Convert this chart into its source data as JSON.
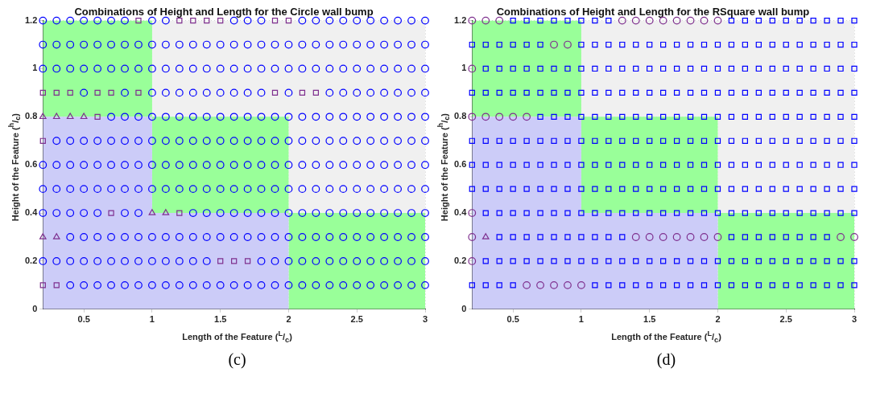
{
  "chart_data": [
    {
      "type": "scatter",
      "title": "Combinations of Height and Length for the Circle wall bump",
      "xlabel": "Length of the Feature ($^{L}$/$_{c}$)",
      "ylabel": "Height of the Feature ($^{h}$/$_{c}$)",
      "xlim": [
        0.2,
        3
      ],
      "ylim": [
        0,
        1.2
      ],
      "xticks": [
        0.5,
        1,
        1.5,
        2,
        2.5,
        3
      ],
      "yticks": [
        0,
        0.2,
        0.4,
        0.6,
        0.8,
        1,
        1.2
      ],
      "grid": true,
      "stacked": true,
      "annotations": [
        "(c)"
      ],
      "series": [
        {
          "type": "area",
          "color": "#ccccf8",
          "x": [
            0.2,
            1,
            1,
            2,
            2,
            3
          ],
          "values": [
            0.8,
            0.8,
            0.4,
            0.4,
            0,
            0
          ]
        },
        {
          "type": "area",
          "color": "#99ff99",
          "x": [
            0.2,
            1,
            1,
            2,
            2,
            3
          ],
          "values": [
            0.4,
            0.4,
            0.4,
            0.4,
            0.4,
            0.4
          ]
        },
        {
          "type": "area",
          "color": "#f0f0f0",
          "x": [
            0.2,
            1,
            1,
            2,
            2,
            3
          ],
          "values": [
            0,
            0,
            0.4,
            0.4,
            0.8,
            0.8
          ]
        },
        {
          "marker": "circle",
          "color": "#0000ff",
          "x": [
            0.2,
            0.3,
            0.4,
            0.5,
            0.6,
            0.7,
            0.8,
            1,
            1.1,
            1.6,
            1.7,
            1.8,
            2.1,
            2.2,
            2.3,
            2.4,
            2.5,
            2.6,
            2.7,
            2.8,
            2.9,
            3,
            0.2,
            0.3,
            0.4,
            0.5,
            0.6,
            0.7,
            0.8,
            0.9,
            1,
            1.1,
            1.2,
            1.3,
            1.4,
            1.5,
            1.6,
            1.7,
            1.8,
            1.9,
            2,
            2.1,
            2.2,
            2.3,
            2.4,
            2.5,
            2.6,
            2.7,
            2.8,
            2.9,
            3,
            0.2,
            0.3,
            0.4,
            0.5,
            0.6,
            0.7,
            0.8,
            0.9,
            1,
            1.1,
            1.2,
            1.3,
            1.4,
            1.5,
            1.6,
            1.7,
            1.8,
            1.9,
            2,
            2.1,
            2.2,
            2.3,
            2.4,
            2.5,
            2.6,
            2.7,
            2.8,
            2.9,
            3,
            0.5,
            0.8,
            1,
            1.1,
            1.2,
            1.3,
            1.4,
            1.5,
            1.6,
            1.7,
            1.8,
            2,
            2.3,
            2.4,
            2.5,
            2.6,
            2.7,
            2.8,
            2.9,
            3,
            0.7,
            0.8,
            0.9,
            1,
            1.1,
            1.2,
            1.3,
            1.4,
            1.5,
            1.6,
            1.7,
            1.8,
            1.9,
            2,
            2.1,
            2.2,
            2.3,
            2.4,
            2.5,
            2.6,
            2.7,
            2.8,
            2.9,
            3,
            0.3,
            0.4,
            0.5,
            0.6,
            0.7,
            0.8,
            0.9,
            1,
            1.1,
            1.2,
            1.3,
            1.4,
            1.5,
            1.6,
            1.7,
            1.8,
            1.9,
            2,
            2.1,
            2.2,
            2.3,
            2.4,
            2.5,
            2.6,
            2.7,
            2.8,
            2.9,
            3,
            0.2,
            0.3,
            0.4,
            0.5,
            0.6,
            0.7,
            0.8,
            0.9,
            1,
            1.1,
            1.2,
            1.3,
            1.4,
            1.5,
            1.6,
            1.7,
            1.8,
            1.9,
            2,
            2.1,
            2.2,
            2.3,
            2.4,
            2.5,
            2.6,
            2.7,
            2.8,
            2.9,
            3,
            0.2,
            0.3,
            0.4,
            0.5,
            0.6,
            0.7,
            0.8,
            0.9,
            1,
            1.1,
            1.2,
            1.3,
            1.4,
            1.5,
            1.6,
            1.7,
            1.8,
            1.9,
            2,
            2.1,
            2.2,
            2.3,
            2.4,
            2.5,
            2.6,
            2.7,
            2.8,
            2.9,
            3,
            0.2,
            0.3,
            0.4,
            0.5,
            0.6,
            0.8,
            0.9,
            1.3,
            1.4,
            1.5,
            1.6,
            1.7,
            1.8,
            1.9,
            2,
            2.1,
            2.2,
            2.3,
            2.4,
            2.5,
            2.6,
            2.7,
            2.8,
            2.9,
            3,
            0.4,
            0.5,
            0.6,
            0.7,
            0.8,
            0.9,
            1,
            1.1,
            1.2,
            1.3,
            1.4,
            1.5,
            1.6,
            1.7,
            1.8,
            1.9,
            2,
            2.1,
            2.2,
            2.3,
            2.4,
            2.5,
            2.6,
            2.7,
            2.8,
            2.9,
            3,
            0.2,
            0.3,
            0.4,
            0.5,
            0.6,
            0.7,
            0.8,
            0.9,
            1,
            1.1,
            1.2,
            1.3,
            1.4,
            1.8,
            1.9,
            2,
            2.1,
            2.2,
            2.3,
            2.4,
            2.5,
            2.6,
            2.7,
            2.8,
            2.9,
            3,
            0.4,
            0.5,
            0.6,
            0.7,
            0.8,
            0.9,
            1,
            1.1,
            1.2,
            1.3,
            1.4,
            1.5,
            1.6,
            1.7,
            1.8,
            1.9,
            2,
            2.1,
            2.2,
            2.3,
            2.4,
            2.5,
            2.6,
            2.7,
            2.8,
            2.9,
            3
          ],
          "values": [
            1.2,
            1.2,
            1.2,
            1.2,
            1.2,
            1.2,
            1.2,
            1.2,
            1.2,
            1.2,
            1.2,
            1.2,
            1.2,
            1.2,
            1.2,
            1.2,
            1.2,
            1.2,
            1.2,
            1.2,
            1.2,
            1.2,
            1.1,
            1.1,
            1.1,
            1.1,
            1.1,
            1.1,
            1.1,
            1.1,
            1.1,
            1.1,
            1.1,
            1.1,
            1.1,
            1.1,
            1.1,
            1.1,
            1.1,
            1.1,
            1.1,
            1.1,
            1.1,
            1.1,
            1.1,
            1.1,
            1.1,
            1.1,
            1.1,
            1.1,
            1.1,
            1,
            1,
            1,
            1,
            1,
            1,
            1,
            1,
            1,
            1,
            1,
            1,
            1,
            1,
            1,
            1,
            1,
            1,
            1,
            1,
            1,
            1,
            1,
            1,
            1,
            1,
            1,
            1,
            1,
            0.9,
            0.9,
            0.9,
            0.9,
            0.9,
            0.9,
            0.9,
            0.9,
            0.9,
            0.9,
            0.9,
            0.9,
            0.9,
            0.9,
            0.9,
            0.9,
            0.9,
            0.9,
            0.9,
            0.9,
            0.8,
            0.8,
            0.8,
            0.8,
            0.8,
            0.8,
            0.8,
            0.8,
            0.8,
            0.8,
            0.8,
            0.8,
            0.8,
            0.8,
            0.8,
            0.8,
            0.8,
            0.8,
            0.8,
            0.8,
            0.8,
            0.8,
            0.8,
            0.8,
            0.7,
            0.7,
            0.7,
            0.7,
            0.7,
            0.7,
            0.7,
            0.7,
            0.7,
            0.7,
            0.7,
            0.7,
            0.7,
            0.7,
            0.7,
            0.7,
            0.7,
            0.7,
            0.7,
            0.7,
            0.7,
            0.7,
            0.7,
            0.7,
            0.7,
            0.7,
            0.7,
            0.7,
            0.6,
            0.6,
            0.6,
            0.6,
            0.6,
            0.6,
            0.6,
            0.6,
            0.6,
            0.6,
            0.6,
            0.6,
            0.6,
            0.6,
            0.6,
            0.6,
            0.6,
            0.6,
            0.6,
            0.6,
            0.6,
            0.6,
            0.6,
            0.6,
            0.6,
            0.6,
            0.6,
            0.6,
            0.6,
            0.5,
            0.5,
            0.5,
            0.5,
            0.5,
            0.5,
            0.5,
            0.5,
            0.5,
            0.5,
            0.5,
            0.5,
            0.5,
            0.5,
            0.5,
            0.5,
            0.5,
            0.5,
            0.5,
            0.5,
            0.5,
            0.5,
            0.5,
            0.5,
            0.5,
            0.5,
            0.5,
            0.5,
            0.5,
            0.4,
            0.4,
            0.4,
            0.4,
            0.4,
            0.4,
            0.4,
            0.4,
            0.4,
            0.4,
            0.4,
            0.4,
            0.4,
            0.4,
            0.4,
            0.4,
            0.4,
            0.4,
            0.4,
            0.4,
            0.4,
            0.4,
            0.4,
            0.4,
            0.4,
            0.3,
            0.3,
            0.3,
            0.3,
            0.3,
            0.3,
            0.3,
            0.3,
            0.3,
            0.3,
            0.3,
            0.3,
            0.3,
            0.3,
            0.3,
            0.3,
            0.3,
            0.3,
            0.3,
            0.3,
            0.3,
            0.3,
            0.3,
            0.3,
            0.3,
            0.3,
            0.3,
            0.2,
            0.2,
            0.2,
            0.2,
            0.2,
            0.2,
            0.2,
            0.2,
            0.2,
            0.2,
            0.2,
            0.2,
            0.2,
            0.2,
            0.2,
            0.2,
            0.2,
            0.2,
            0.2,
            0.2,
            0.2,
            0.2,
            0.2,
            0.2,
            0.2,
            0.2,
            0.1,
            0.1,
            0.1,
            0.1,
            0.1,
            0.1,
            0.1,
            0.1,
            0.1,
            0.1,
            0.1,
            0.1,
            0.1,
            0.1,
            0.1,
            0.1,
            0.1,
            0.1,
            0.1,
            0.1,
            0.1,
            0.1,
            0.1,
            0.1,
            0.1,
            0.1,
            0.1
          ]
        },
        {
          "marker": "square",
          "color": "#7e2f8e",
          "x": [
            0.9,
            1.2,
            1.3,
            1.4,
            1.5,
            1.9,
            2,
            0.2,
            0.3,
            0.4,
            0.6,
            0.7,
            0.9,
            1.9,
            2.1,
            2.2,
            0.6,
            0.2,
            0.7,
            1.2,
            1.5,
            1.6,
            1.7,
            0.2,
            0.3
          ],
          "values": [
            1.2,
            1.2,
            1.2,
            1.2,
            1.2,
            1.2,
            1.2,
            0.9,
            0.9,
            0.9,
            0.9,
            0.9,
            0.9,
            0.9,
            0.9,
            0.9,
            0.8,
            0.7,
            0.4,
            0.4,
            0.2,
            0.2,
            0.2,
            0.1,
            0.1
          ]
        },
        {
          "marker": "triangle",
          "color": "#7e2f8e",
          "x": [
            0.2,
            0.3,
            0.4,
            0.5,
            1,
            1.1,
            0.2,
            0.3
          ],
          "values": [
            0.8,
            0.8,
            0.8,
            0.8,
            0.4,
            0.4,
            0.3,
            0.3
          ]
        }
      ]
    },
    {
      "type": "scatter",
      "title": "Combinations of Height and Length for the RSquare wall bump",
      "xlabel": "Length of the Feature ($^{L}$/$_{c}$)",
      "ylabel": "Height of the Feature ($^{h}$/$_{c}$)",
      "xlim": [
        0.2,
        3
      ],
      "ylim": [
        0,
        1.2
      ],
      "xticks": [
        0.5,
        1,
        1.5,
        2,
        2.5,
        3
      ],
      "yticks": [
        0,
        0.2,
        0.4,
        0.6,
        0.8,
        1,
        1.2
      ],
      "grid": true,
      "stacked": true,
      "annotations": [
        "(d)"
      ],
      "series": [
        {
          "type": "area",
          "color": "#ccccf8",
          "x": [
            0.2,
            1,
            1,
            2,
            2,
            3
          ],
          "values": [
            0.8,
            0.8,
            0.4,
            0.4,
            0,
            0
          ]
        },
        {
          "type": "area",
          "color": "#99ff99",
          "x": [
            0.2,
            1,
            1,
            2,
            2,
            3
          ],
          "values": [
            0.4,
            0.4,
            0.4,
            0.4,
            0.4,
            0.4
          ]
        },
        {
          "type": "area",
          "color": "#f0f0f0",
          "x": [
            0.2,
            1,
            1,
            2,
            2,
            3
          ],
          "values": [
            0,
            0,
            0.4,
            0.4,
            0.8,
            0.8
          ]
        },
        {
          "marker": "square",
          "color": "#0000ff",
          "x": [
            0.5,
            0.6,
            0.7,
            0.8,
            0.9,
            1,
            1.1,
            1.2,
            2.1,
            2.2,
            2.3,
            2.4,
            2.5,
            2.6,
            2.7,
            2.8,
            2.9,
            3,
            0.2,
            0.3,
            0.4,
            0.5,
            0.6,
            0.7,
            1,
            1.1,
            1.2,
            1.3,
            1.4,
            1.5,
            1.6,
            1.7,
            1.8,
            1.9,
            2,
            2.1,
            2.2,
            2.3,
            2.4,
            2.5,
            2.6,
            2.7,
            2.8,
            2.9,
            3,
            0.3,
            0.4,
            0.5,
            0.6,
            0.7,
            0.8,
            0.9,
            1,
            1.1,
            1.2,
            1.3,
            1.4,
            1.5,
            1.6,
            1.7,
            1.8,
            1.9,
            2,
            2.1,
            2.2,
            2.3,
            2.4,
            2.5,
            2.6,
            2.7,
            2.8,
            2.9,
            3,
            0.2,
            0.3,
            0.4,
            0.5,
            0.6,
            0.7,
            0.8,
            0.9,
            1,
            1.1,
            1.2,
            1.3,
            1.4,
            1.5,
            1.6,
            1.7,
            1.8,
            1.9,
            2,
            2.1,
            2.2,
            2.3,
            2.4,
            2.5,
            2.6,
            2.7,
            2.8,
            2.9,
            3,
            0.7,
            0.8,
            0.9,
            1,
            1.1,
            1.2,
            1.3,
            1.4,
            1.5,
            1.6,
            1.7,
            1.8,
            1.9,
            2,
            2.1,
            2.2,
            2.3,
            2.4,
            2.5,
            2.6,
            2.7,
            2.8,
            2.9,
            3,
            0.2,
            0.3,
            0.4,
            0.5,
            0.6,
            0.7,
            0.8,
            0.9,
            1,
            1.1,
            1.2,
            1.3,
            1.4,
            1.5,
            1.6,
            1.7,
            1.8,
            1.9,
            2,
            2.1,
            2.2,
            2.3,
            2.4,
            2.5,
            2.6,
            2.7,
            2.8,
            2.9,
            3,
            0.2,
            0.3,
            0.4,
            0.5,
            0.6,
            0.7,
            0.8,
            0.9,
            1,
            1.1,
            1.2,
            1.3,
            1.4,
            1.5,
            1.6,
            1.7,
            1.8,
            1.9,
            2,
            2.1,
            2.2,
            2.3,
            2.4,
            2.5,
            2.6,
            2.7,
            2.8,
            2.9,
            3,
            0.2,
            0.3,
            0.4,
            0.5,
            0.6,
            0.7,
            0.8,
            0.9,
            1,
            1.1,
            1.2,
            1.3,
            1.4,
            1.5,
            1.6,
            1.7,
            1.8,
            1.9,
            2,
            2.1,
            2.2,
            2.3,
            2.4,
            2.5,
            2.6,
            2.7,
            2.8,
            2.9,
            3,
            0.3,
            0.4,
            0.5,
            0.6,
            0.7,
            0.8,
            0.9,
            1,
            1.1,
            1.2,
            1.3,
            1.4,
            1.5,
            1.6,
            1.7,
            1.8,
            1.9,
            2,
            2.1,
            2.2,
            2.3,
            2.4,
            2.5,
            2.6,
            2.7,
            2.8,
            2.9,
            3,
            0.4,
            0.5,
            0.6,
            0.7,
            0.8,
            0.9,
            1,
            1.1,
            1.2,
            1.3,
            2.1,
            2.2,
            2.3,
            2.4,
            2.5,
            2.6,
            2.7,
            2.8,
            0.3,
            0.4,
            0.5,
            0.6,
            0.7,
            0.8,
            0.9,
            1,
            1.1,
            1.2,
            1.3,
            1.4,
            1.5,
            1.6,
            1.7,
            1.8,
            1.9,
            2,
            2.1,
            2.2,
            2.3,
            2.4,
            2.5,
            2.6,
            2.7,
            2.8,
            2.9,
            3,
            0.2,
            0.3,
            0.4,
            0.5,
            1.1,
            1.2,
            1.3,
            1.4,
            1.5,
            1.6,
            1.7,
            1.8,
            1.9,
            2,
            2.1,
            2.2,
            2.3,
            2.4,
            2.5,
            2.6,
            2.7,
            2.8,
            2.9,
            3
          ],
          "values": [
            1.2,
            1.2,
            1.2,
            1.2,
            1.2,
            1.2,
            1.2,
            1.2,
            1.2,
            1.2,
            1.2,
            1.2,
            1.2,
            1.2,
            1.2,
            1.2,
            1.2,
            1.2,
            1.1,
            1.1,
            1.1,
            1.1,
            1.1,
            1.1,
            1.1,
            1.1,
            1.1,
            1.1,
            1.1,
            1.1,
            1.1,
            1.1,
            1.1,
            1.1,
            1.1,
            1.1,
            1.1,
            1.1,
            1.1,
            1.1,
            1.1,
            1.1,
            1.1,
            1.1,
            1.1,
            1,
            1,
            1,
            1,
            1,
            1,
            1,
            1,
            1,
            1,
            1,
            1,
            1,
            1,
            1,
            1,
            1,
            1,
            1,
            1,
            1,
            1,
            1,
            1,
            1,
            1,
            1,
            1,
            0.9,
            0.9,
            0.9,
            0.9,
            0.9,
            0.9,
            0.9,
            0.9,
            0.9,
            0.9,
            0.9,
            0.9,
            0.9,
            0.9,
            0.9,
            0.9,
            0.9,
            0.9,
            0.9,
            0.9,
            0.9,
            0.9,
            0.9,
            0.9,
            0.9,
            0.9,
            0.9,
            0.9,
            0.9,
            0.8,
            0.8,
            0.8,
            0.8,
            0.8,
            0.8,
            0.8,
            0.8,
            0.8,
            0.8,
            0.8,
            0.8,
            0.8,
            0.8,
            0.8,
            0.8,
            0.8,
            0.8,
            0.8,
            0.8,
            0.8,
            0.8,
            0.8,
            0.8,
            0.7,
            0.7,
            0.7,
            0.7,
            0.7,
            0.7,
            0.7,
            0.7,
            0.7,
            0.7,
            0.7,
            0.7,
            0.7,
            0.7,
            0.7,
            0.7,
            0.7,
            0.7,
            0.7,
            0.7,
            0.7,
            0.7,
            0.7,
            0.7,
            0.7,
            0.7,
            0.7,
            0.7,
            0.7,
            0.6,
            0.6,
            0.6,
            0.6,
            0.6,
            0.6,
            0.6,
            0.6,
            0.6,
            0.6,
            0.6,
            0.6,
            0.6,
            0.6,
            0.6,
            0.6,
            0.6,
            0.6,
            0.6,
            0.6,
            0.6,
            0.6,
            0.6,
            0.6,
            0.6,
            0.6,
            0.6,
            0.6,
            0.6,
            0.5,
            0.5,
            0.5,
            0.5,
            0.5,
            0.5,
            0.5,
            0.5,
            0.5,
            0.5,
            0.5,
            0.5,
            0.5,
            0.5,
            0.5,
            0.5,
            0.5,
            0.5,
            0.5,
            0.5,
            0.5,
            0.5,
            0.5,
            0.5,
            0.5,
            0.5,
            0.5,
            0.5,
            0.5,
            0.4,
            0.4,
            0.4,
            0.4,
            0.4,
            0.4,
            0.4,
            0.4,
            0.4,
            0.4,
            0.4,
            0.4,
            0.4,
            0.4,
            0.4,
            0.4,
            0.4,
            0.4,
            0.4,
            0.4,
            0.4,
            0.4,
            0.4,
            0.4,
            0.4,
            0.4,
            0.4,
            0.4,
            0.3,
            0.3,
            0.3,
            0.3,
            0.3,
            0.3,
            0.3,
            0.3,
            0.3,
            0.3,
            0.3,
            0.3,
            0.3,
            0.3,
            0.3,
            0.3,
            0.3,
            0.3,
            0.2,
            0.2,
            0.2,
            0.2,
            0.2,
            0.2,
            0.2,
            0.2,
            0.2,
            0.2,
            0.2,
            0.2,
            0.2,
            0.2,
            0.2,
            0.2,
            0.2,
            0.2,
            0.2,
            0.2,
            0.2,
            0.2,
            0.2,
            0.2,
            0.2,
            0.2,
            0.2,
            0.2,
            0.1,
            0.1,
            0.1,
            0.1,
            0.1,
            0.1,
            0.1,
            0.1,
            0.1,
            0.1,
            0.1,
            0.1,
            0.1,
            0.1,
            0.1,
            0.1,
            0.1,
            0.1,
            0.1,
            0.1,
            0.1,
            0.1,
            0.1,
            0.1
          ]
        },
        {
          "marker": "circle",
          "color": "#7e2f8e",
          "x": [
            0.2,
            0.3,
            0.4,
            1.3,
            1.4,
            1.5,
            1.6,
            1.7,
            1.8,
            1.9,
            2,
            0.8,
            0.9,
            0.2,
            0.2,
            0.3,
            0.4,
            0.5,
            0.6,
            0.2,
            0.2,
            1.4,
            1.5,
            1.6,
            1.7,
            1.8,
            1.9,
            2,
            2.9,
            3,
            0.2,
            0.6,
            0.7,
            0.8,
            0.9,
            1
          ],
          "values": [
            1.2,
            1.2,
            1.2,
            1.2,
            1.2,
            1.2,
            1.2,
            1.2,
            1.2,
            1.2,
            1.2,
            1.1,
            1.1,
            1,
            0.8,
            0.8,
            0.8,
            0.8,
            0.8,
            0.4,
            0.3,
            0.3,
            0.3,
            0.3,
            0.3,
            0.3,
            0.3,
            0.3,
            0.3,
            0.3,
            0.2,
            0.1,
            0.1,
            0.1,
            0.1,
            0.1
          ]
        },
        {
          "marker": "triangle",
          "color": "#7e2f8e",
          "x": [
            0.3
          ],
          "values": [
            0.3
          ]
        }
      ]
    }
  ]
}
